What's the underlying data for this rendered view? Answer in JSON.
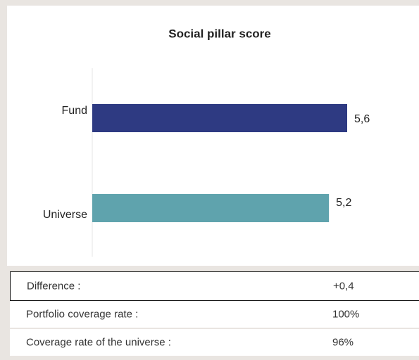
{
  "chart_data": {
    "type": "bar",
    "orientation": "horizontal",
    "title": "Social pillar score",
    "categories": [
      "Fund",
      "Universe"
    ],
    "values": [
      5.6,
      5.2
    ],
    "value_labels": [
      "5,6",
      "5,2"
    ],
    "colors": [
      "#2e3a82",
      "#5fa3ad"
    ]
  },
  "table": {
    "rows": [
      [
        "Difference :",
        "+0,4"
      ],
      [
        "Portfolio coverage rate :",
        "100%"
      ],
      [
        "Coverage rate of the universe :",
        "96%"
      ]
    ]
  }
}
